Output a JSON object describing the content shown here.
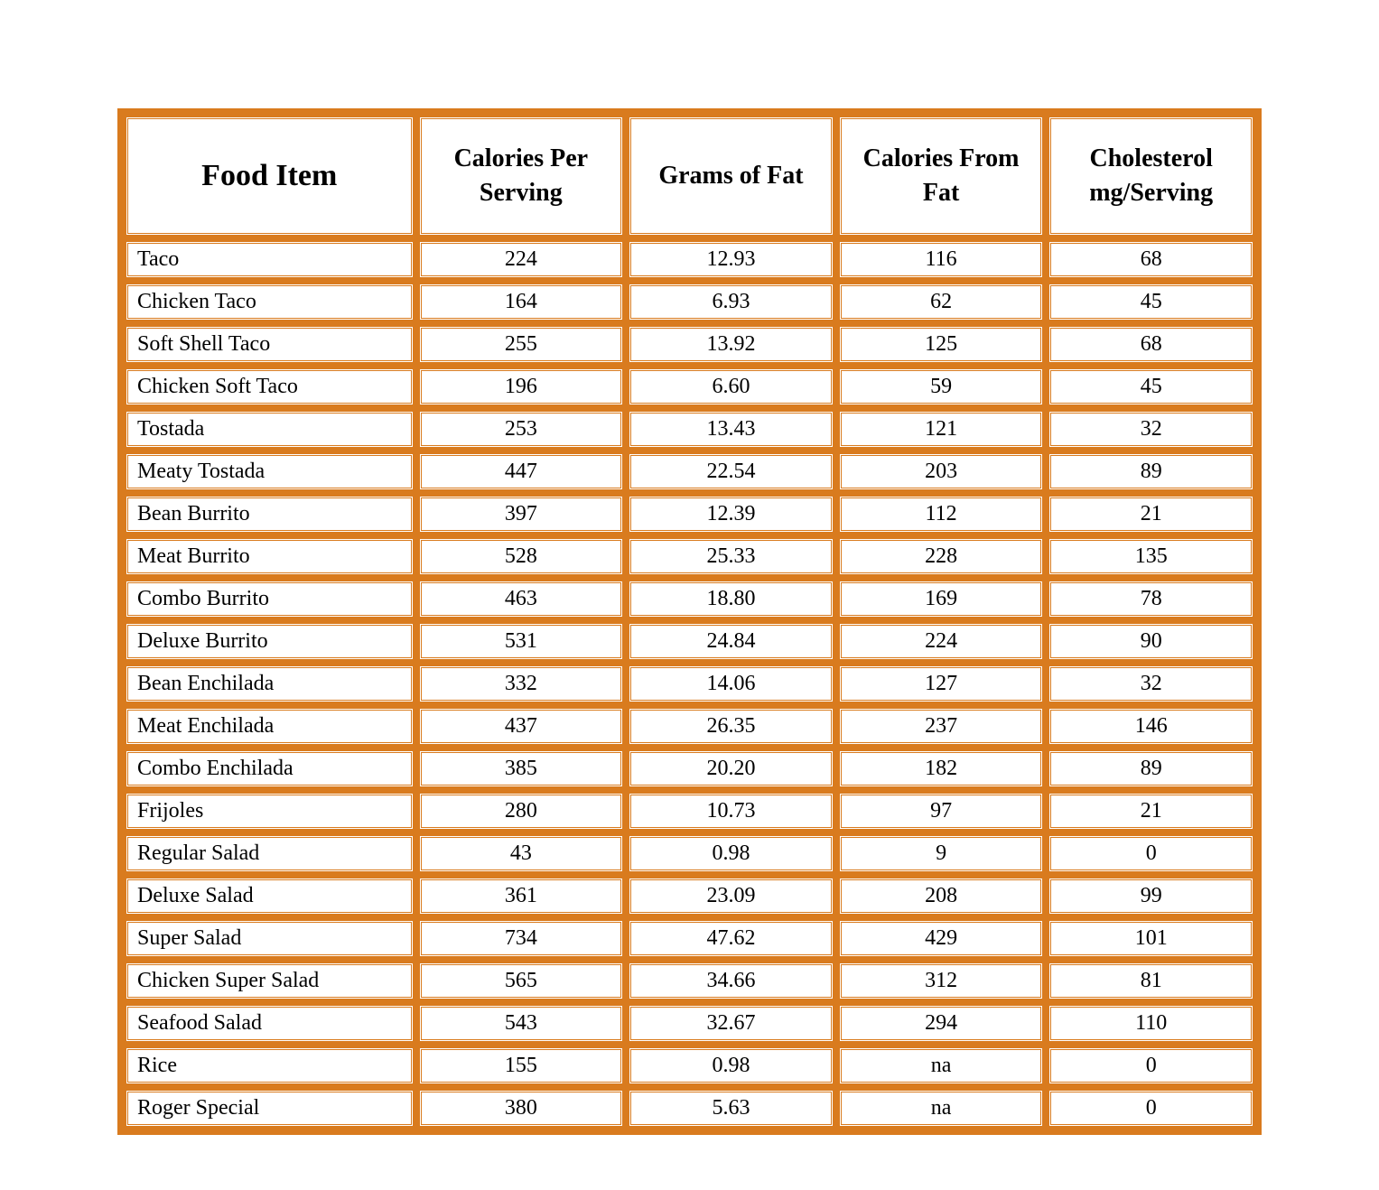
{
  "table": {
    "type": "table",
    "border_color": "#d97b1e",
    "background_color": "#ffffff",
    "text_color": "#000000",
    "header_fontsize": 28,
    "food_header_fontsize": 34,
    "body_fontsize": 24,
    "font_family": "Georgia, Times New Roman, serif",
    "cell_spacing": 6,
    "border_style": "double",
    "border_width": 3,
    "column_widths_pct": [
      26,
      18.5,
      18.5,
      18.5,
      18.5
    ],
    "column_align": [
      "left",
      "center",
      "center",
      "center",
      "center"
    ],
    "columns": [
      "Food Item",
      "Calories Per Serving",
      "Grams of Fat",
      "Calories From Fat",
      "Cholesterol mg/Serving"
    ],
    "rows": [
      [
        "Taco",
        "224",
        "12.93",
        "116",
        "68"
      ],
      [
        "Chicken Taco",
        "164",
        "6.93",
        "62",
        "45"
      ],
      [
        "Soft Shell Taco",
        "255",
        "13.92",
        "125",
        "68"
      ],
      [
        "Chicken Soft Taco",
        "196",
        "6.60",
        "59",
        "45"
      ],
      [
        "Tostada",
        "253",
        "13.43",
        "121",
        "32"
      ],
      [
        "Meaty Tostada",
        "447",
        "22.54",
        "203",
        "89"
      ],
      [
        "Bean Burrito",
        "397",
        "12.39",
        "112",
        "21"
      ],
      [
        "Meat Burrito",
        "528",
        "25.33",
        "228",
        "135"
      ],
      [
        "Combo Burrito",
        "463",
        "18.80",
        "169",
        "78"
      ],
      [
        "Deluxe Burrito",
        "531",
        "24.84",
        "224",
        "90"
      ],
      [
        "Bean Enchilada",
        "332",
        "14.06",
        "127",
        "32"
      ],
      [
        "Meat Enchilada",
        "437",
        "26.35",
        "237",
        "146"
      ],
      [
        "Combo Enchilada",
        "385",
        "20.20",
        "182",
        "89"
      ],
      [
        "Frijoles",
        "280",
        "10.73",
        "97",
        "21"
      ],
      [
        "Regular Salad",
        "43",
        "0.98",
        "9",
        "0"
      ],
      [
        "Deluxe Salad",
        "361",
        "23.09",
        "208",
        "99"
      ],
      [
        "Super Salad",
        "734",
        "47.62",
        "429",
        "101"
      ],
      [
        "Chicken Super Salad",
        "565",
        "34.66",
        "312",
        "81"
      ],
      [
        "Seafood Salad",
        "543",
        "32.67",
        "294",
        "110"
      ],
      [
        "Rice",
        "155",
        "0.98",
        "na",
        "0"
      ],
      [
        "Roger Special",
        "380",
        "5.63",
        "na",
        "0"
      ]
    ]
  }
}
